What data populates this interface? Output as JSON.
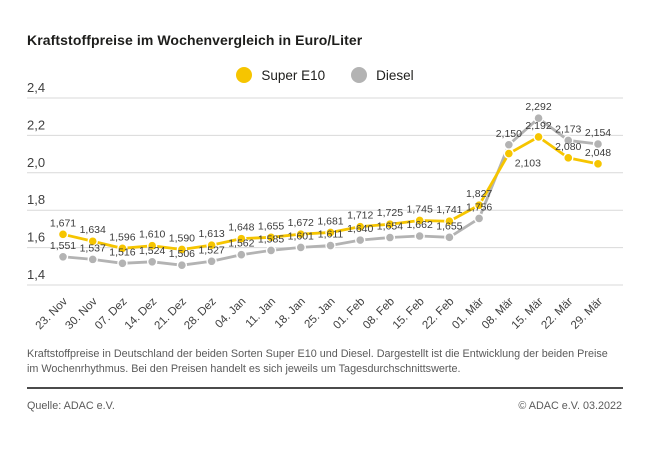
{
  "title": "Kraftstoffpreise im Wochenvergleich in Euro/Liter",
  "footnote": "Kraftstoffpreise in Deutschland der beiden Sorten Super E10 und Diesel. Dargestellt ist die Entwicklung der beiden Preise im Wochenrhythmus. Bei den Preisen handelt es sich jeweils um Tagesdurchschnittswerte.",
  "source": "Quelle: ADAC e.V.",
  "copyright": "© ADAC e.V. 03.2022",
  "colors": {
    "super_e10": "#f6c500",
    "diesel": "#b3b3b3",
    "grid": "#d9d9d9",
    "tick_text": "#3f3f3f",
    "value_text": "#3c3c3c"
  },
  "chart_data": {
    "type": "line",
    "title": "Kraftstoffpreise im Wochenvergleich in Euro/Liter",
    "xlabel": "",
    "ylabel": "Euro/Liter",
    "categories": [
      "23. Nov",
      "30. Nov",
      "07. Dez",
      "14. Dez",
      "21. Dez",
      "28. Dez",
      "04. Jan",
      "11. Jan",
      "18. Jan",
      "25. Jan",
      "01. Feb",
      "08. Feb",
      "15. Feb",
      "22. Feb",
      "01. Mär",
      "08. Mär",
      "15. Mär",
      "22. Mär",
      "29. Mär"
    ],
    "series": [
      {
        "name": "Super E10",
        "color": "#f6c500",
        "values": [
          1.671,
          1.634,
          1.596,
          1.61,
          1.59,
          1.613,
          1.648,
          1.655,
          1.672,
          1.681,
          1.712,
          1.725,
          1.745,
          1.741,
          1.827,
          2.103,
          2.192,
          2.08,
          2.048
        ]
      },
      {
        "name": "Diesel",
        "color": "#b3b3b3",
        "values": [
          1.551,
          1.537,
          1.516,
          1.524,
          1.506,
          1.527,
          1.562,
          1.585,
          1.601,
          1.611,
          1.64,
          1.654,
          1.662,
          1.655,
          1.756,
          2.15,
          2.292,
          2.173,
          2.154
        ]
      }
    ],
    "ylim": [
      1.4,
      2.4
    ],
    "yticks": [
      2.4,
      2.2,
      2.0,
      1.8,
      1.6,
      1.4
    ],
    "grid": true,
    "legend_position": "top-center",
    "value_labels": true,
    "label_overrides": [
      {
        "series": 0,
        "index": 15,
        "dx": 19,
        "dy": 21
      }
    ]
  }
}
